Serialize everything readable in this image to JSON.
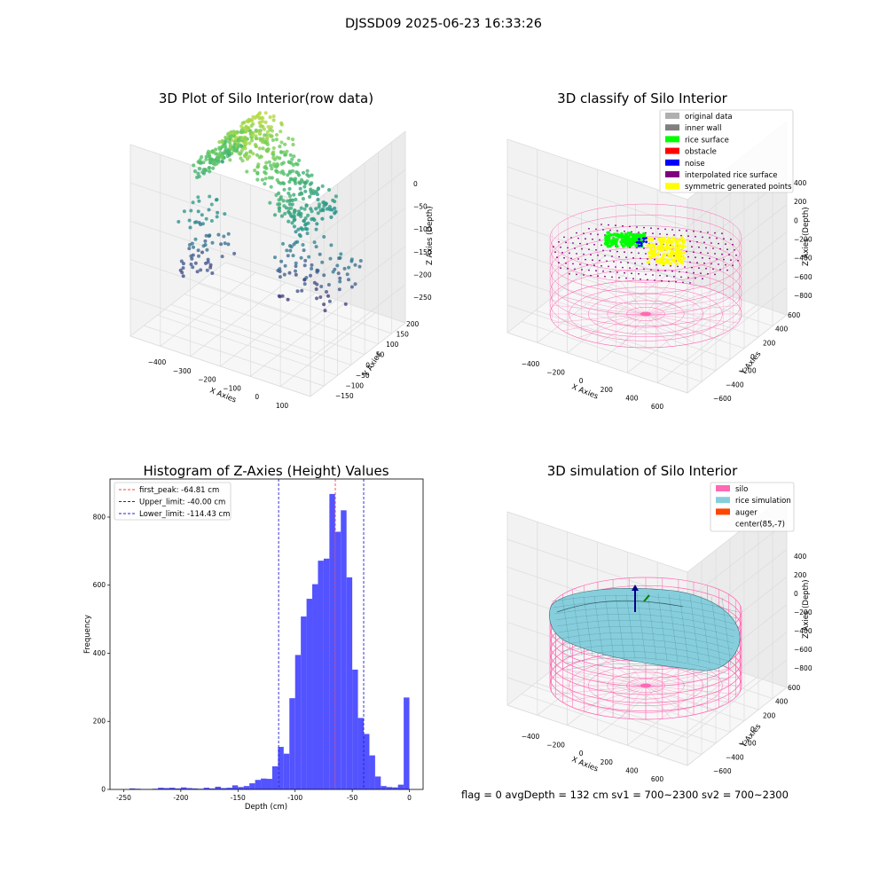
{
  "suptitle": "DJSSD09 2025-06-23 16:33:26",
  "footer": "flag = 0     avgDepth = 132 cm  sv1 = 700~2300  sv2 = 700~2300",
  "colors": {
    "histogram_bar": "#4a4aff",
    "first_peak": "#ff4040",
    "limit_line": "#2020d0",
    "silo": "#ff69b4",
    "rice_simulation": "#87cedc",
    "auger": "#ff4500",
    "rice_surface": "#00ff00",
    "interpolated": "#800080",
    "symmetric": "#ffff00",
    "noise": "#0000ff"
  },
  "chart_data": [
    {
      "type": "scatter",
      "projection": "3d",
      "title": "3D Plot of Silo Interior(row data)",
      "xlabel": "X Axies",
      "ylabel": "Y Axies",
      "zlabel": "Z Axies (Depth)",
      "x_ticks": [
        "−400",
        "−300",
        "−200",
        "−100",
        "0",
        "100"
      ],
      "y_ticks": [
        "−150",
        "−100",
        "−50",
        "0",
        "50",
        "100",
        "150",
        "200"
      ],
      "z_ticks": [
        "0",
        "−50",
        "−100",
        "−150",
        "−200",
        "−250"
      ],
      "xlim": [
        -450,
        150
      ],
      "ylim": [
        -170,
        220
      ],
      "zlim": [
        -260,
        10
      ],
      "colormap": "viridis"
    },
    {
      "type": "scatter",
      "projection": "3d",
      "title": "3D classify of Silo Interior",
      "xlabel": "X Axies",
      "ylabel": "Y Axies",
      "zlabel": "Z Axies (Depth)",
      "x_ticks": [
        "−400",
        "−200",
        "0",
        "200",
        "400",
        "600"
      ],
      "y_ticks": [
        "−600",
        "−400",
        "−200",
        "0",
        "200",
        "400",
        "600"
      ],
      "z_ticks": [
        "400",
        "200",
        "0",
        "−200",
        "−400",
        "−600",
        "−800"
      ],
      "legend": [
        {
          "label": "original data",
          "color": "#b0b0b0"
        },
        {
          "label": "inner wall",
          "color": "#808080"
        },
        {
          "label": "rice surface",
          "color": "#00ff00"
        },
        {
          "label": "obstacle",
          "color": "#ff0000"
        },
        {
          "label": "noise",
          "color": "#0000ff"
        },
        {
          "label": "interpolated rice surface",
          "color": "#800080"
        },
        {
          "label": "symmetric generated points",
          "color": "#ffff00"
        }
      ],
      "legend_position": "top-right"
    },
    {
      "type": "bar",
      "title": "Histogram of Z-Axies (Height) Values",
      "xlabel": "Depth (cm)",
      "ylabel": "Frequency",
      "x_ticks": [
        -250,
        -200,
        -150,
        -100,
        -50,
        0
      ],
      "y_ticks": [
        0,
        200,
        400,
        600,
        800
      ],
      "xlim": [
        -262,
        12
      ],
      "ylim": [
        0,
        912
      ],
      "bin_width": 5,
      "bin_starts": [
        -245,
        -240,
        -235,
        -230,
        -225,
        -220,
        -215,
        -210,
        -205,
        -200,
        -195,
        -190,
        -185,
        -180,
        -175,
        -170,
        -165,
        -160,
        -155,
        -150,
        -145,
        -140,
        -135,
        -130,
        -125,
        -120,
        -115,
        -110,
        -105,
        -100,
        -95,
        -90,
        -85,
        -80,
        -75,
        -70,
        -65,
        -60,
        -55,
        -50,
        -45,
        -40,
        -35,
        -30,
        -25,
        -20,
        -15,
        -10,
        -5,
        0
      ],
      "counts": [
        3,
        2,
        1,
        1,
        2,
        5,
        4,
        5,
        3,
        6,
        4,
        3,
        2,
        5,
        3,
        8,
        4,
        5,
        12,
        7,
        10,
        18,
        28,
        32,
        31,
        68,
        125,
        105,
        268,
        395,
        508,
        560,
        603,
        672,
        678,
        868,
        757,
        820,
        623,
        352,
        210,
        163,
        100,
        38,
        10,
        7,
        6,
        14,
        270,
        0
      ],
      "lines": [
        {
          "label": "first_peak: -64.81 cm",
          "x": -64.81,
          "color": "#ff4040"
        },
        {
          "label": "Upper_limit: -40.00 cm",
          "x": -40.0,
          "color": "#2020d0"
        },
        {
          "label": "Lower_limit: -114.43 cm",
          "x": -114.43,
          "color": "#2020d0"
        }
      ],
      "legend_position": "top-left"
    },
    {
      "type": "scatter",
      "projection": "3d",
      "title": "3D simulation of Silo Interior",
      "xlabel": "X Axies",
      "ylabel": "Y Axies",
      "zlabel": "Z Axies (Depth)",
      "x_ticks": [
        "−400",
        "−200",
        "0",
        "200",
        "400",
        "600"
      ],
      "y_ticks": [
        "−600",
        "−400",
        "−200",
        "0",
        "200",
        "400",
        "600"
      ],
      "z_ticks": [
        "400",
        "200",
        "0",
        "−200",
        "−400",
        "−600",
        "−800"
      ],
      "legend": [
        {
          "label": "silo",
          "color": "#ff69b4"
        },
        {
          "label": "rice simulation",
          "color": "#87cedc"
        },
        {
          "label": "auger",
          "color": "#ff4500"
        },
        {
          "label": "center(85,-7)",
          "color": ""
        }
      ],
      "legend_position": "top-right"
    }
  ]
}
